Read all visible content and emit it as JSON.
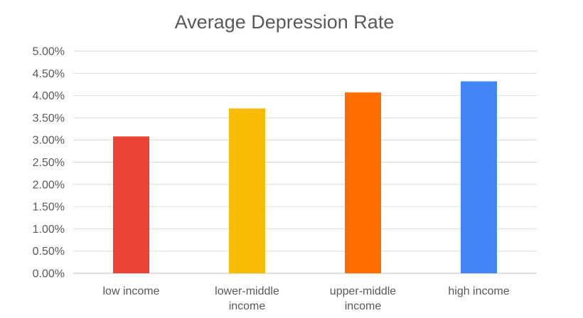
{
  "chart_data": {
    "type": "bar",
    "title": "Average Depression Rate",
    "xlabel": "",
    "ylabel": "",
    "categories": [
      [
        "low income"
      ],
      [
        "lower-middle",
        "income"
      ],
      [
        "upper-middle",
        "income"
      ],
      [
        "high income"
      ]
    ],
    "values": [
      0.0308,
      0.0371,
      0.0407,
      0.0432
    ],
    "bar_colors": [
      "#EA4335",
      "#FBBC04",
      "#FF6D01",
      "#4285F4"
    ],
    "ylim": [
      0,
      0.05
    ],
    "y_ticks": [
      0,
      0.005,
      0.01,
      0.015,
      0.02,
      0.025,
      0.03,
      0.035,
      0.04,
      0.045,
      0.05
    ],
    "y_tick_labels": [
      "0.00%",
      "0.50%",
      "1.00%",
      "1.50%",
      "2.00%",
      "2.50%",
      "3.00%",
      "3.50%",
      "4.00%",
      "4.50%",
      "5.00%"
    ],
    "grid": true,
    "legend": "none"
  }
}
